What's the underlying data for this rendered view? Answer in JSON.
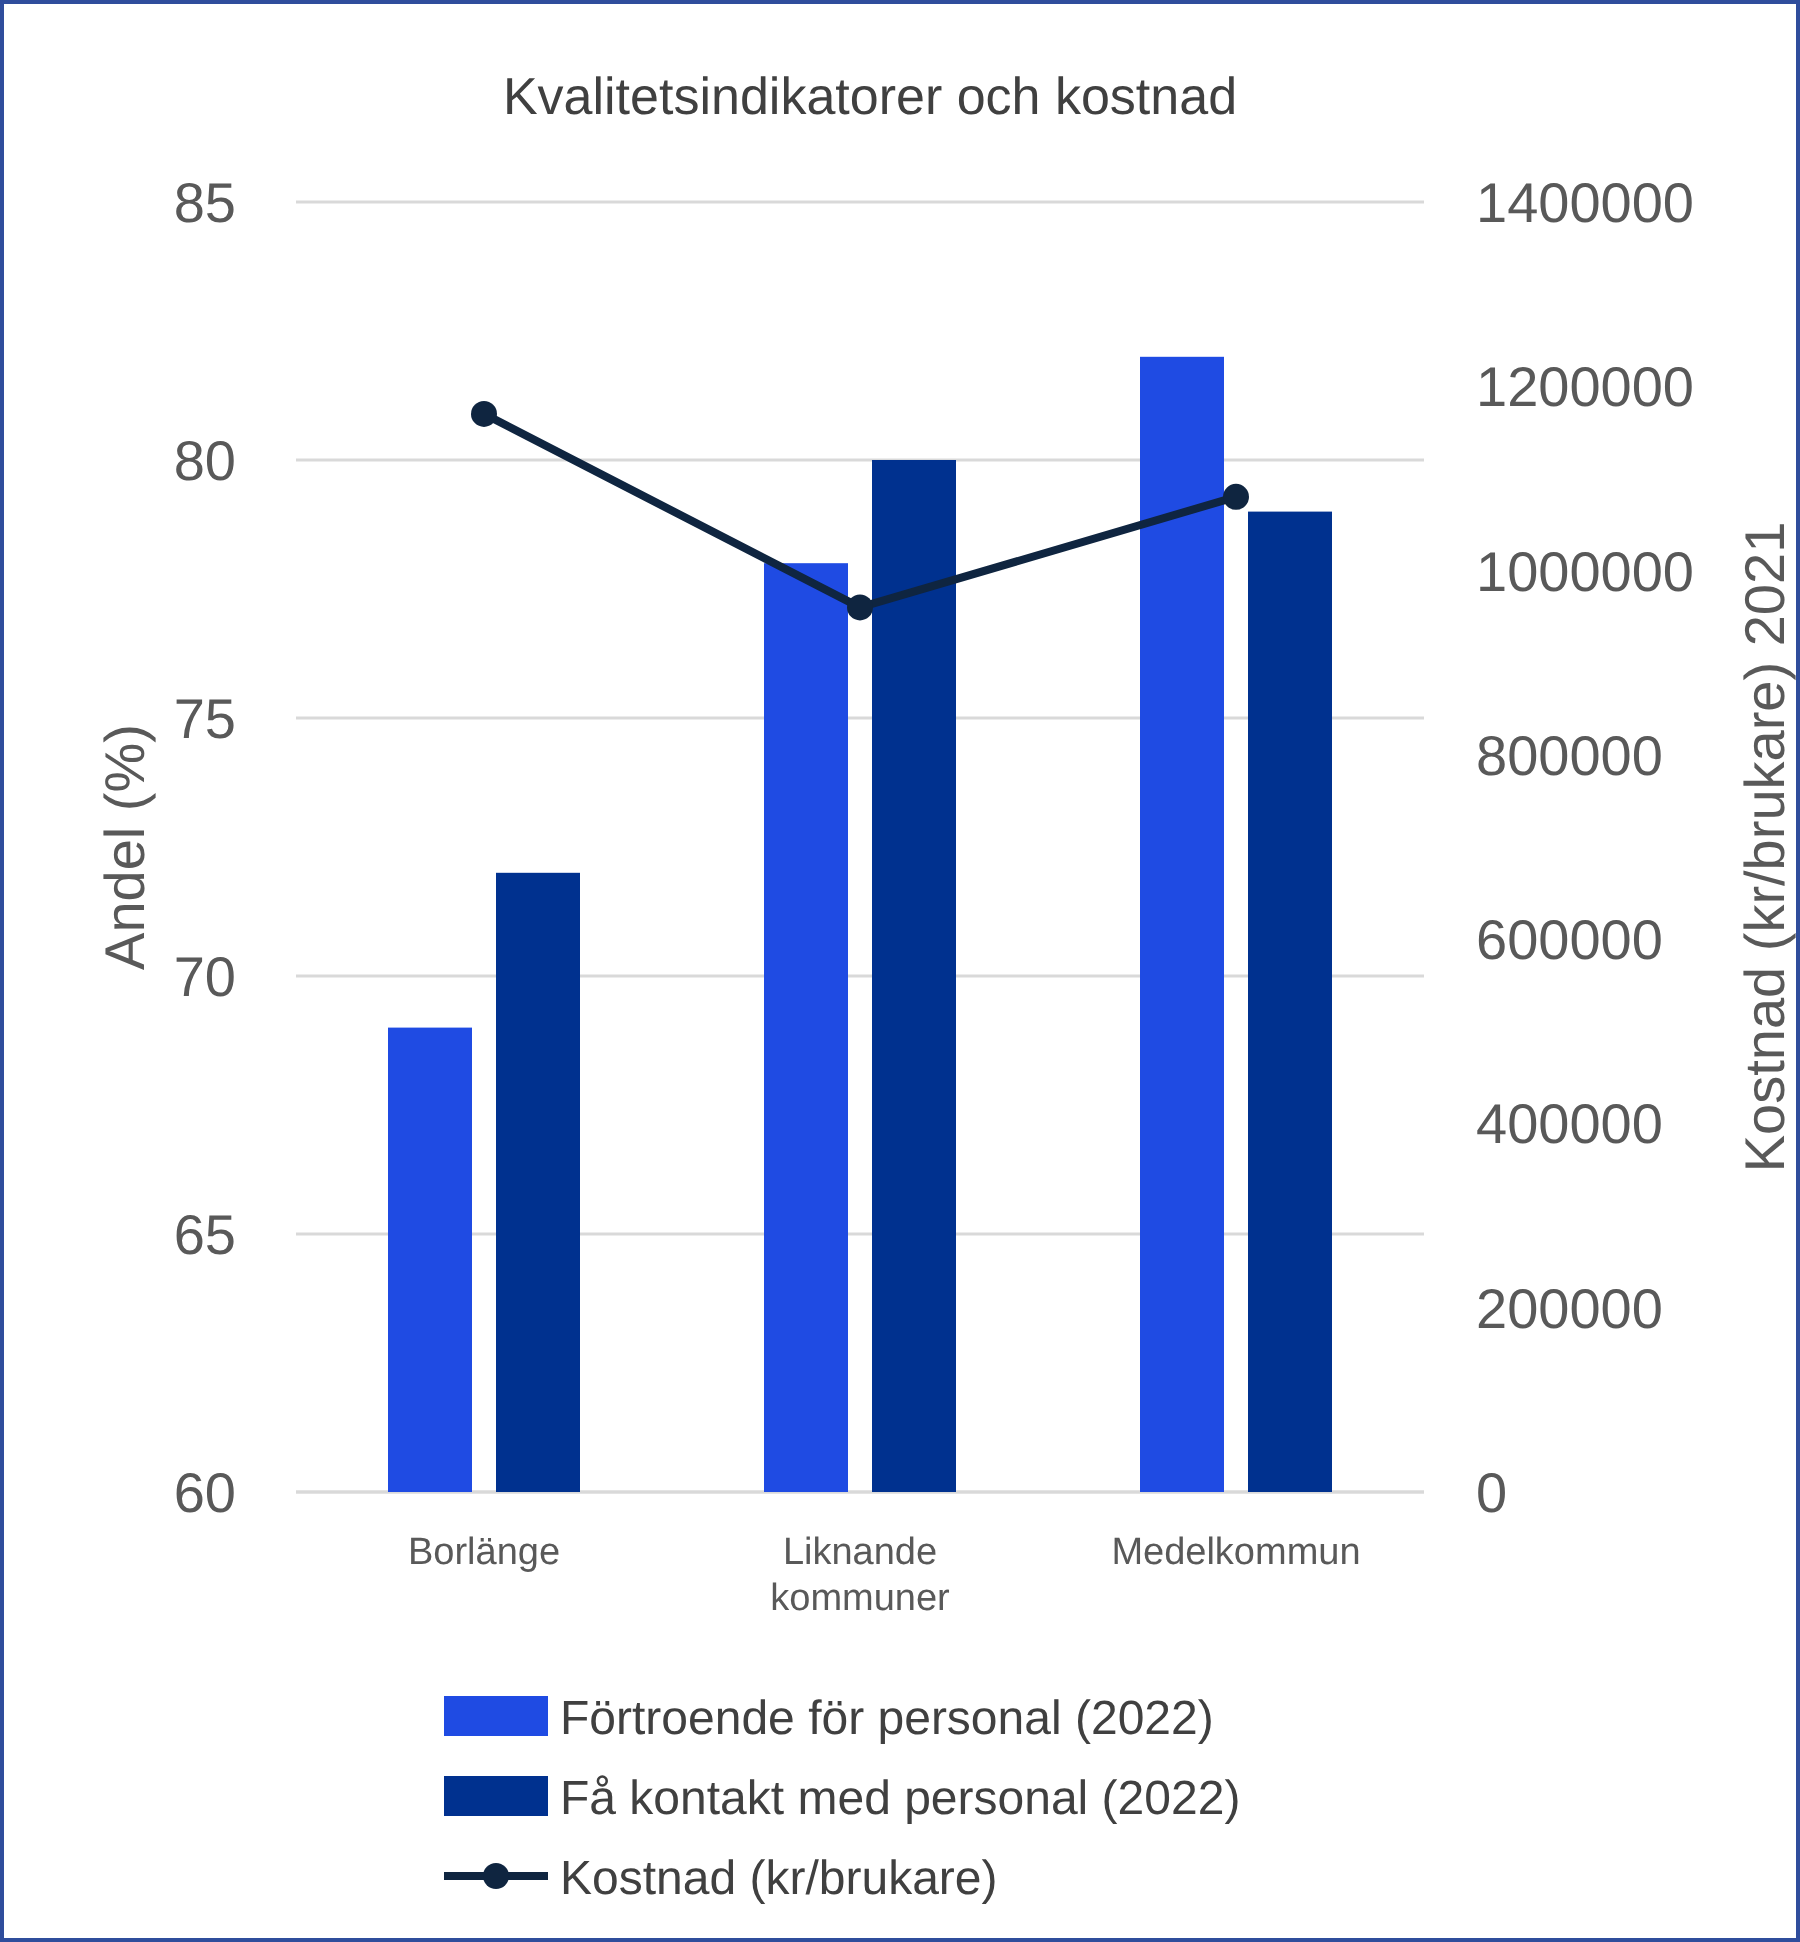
{
  "chart_data": {
    "type": "bar",
    "title": "Kvalitetsindikatorer och kostnad",
    "ylabel": "Andel (%)",
    "y2label": "Kostnad (kr/brukare) 2021",
    "categories": [
      "Borlänge",
      "Liknande kommuner",
      "Medelkommun"
    ],
    "series": [
      {
        "name": "Förtroende för personal (2022)",
        "color": "#1f4be3",
        "values": [
          69,
          78,
          82
        ]
      },
      {
        "name": "Få kontakt med personal (2022)",
        "color": "#00318f",
        "values": [
          72,
          80,
          79
        ]
      },
      {
        "name": "Kostnad (kr/brukare)",
        "color": "#0f2540",
        "type": "line",
        "axis": "y2",
        "marker": "circle",
        "values": [
          1170000,
          960000,
          1080000
        ]
      }
    ],
    "ylim": [
      60,
      85
    ],
    "yticks": [
      60,
      65,
      70,
      75,
      80,
      85
    ],
    "y2lim": [
      0,
      1400000
    ],
    "y2ticks": [
      0,
      200000,
      400000,
      600000,
      800000,
      1000000,
      1200000,
      1400000
    ],
    "grid": "y",
    "legend": "bottom"
  }
}
